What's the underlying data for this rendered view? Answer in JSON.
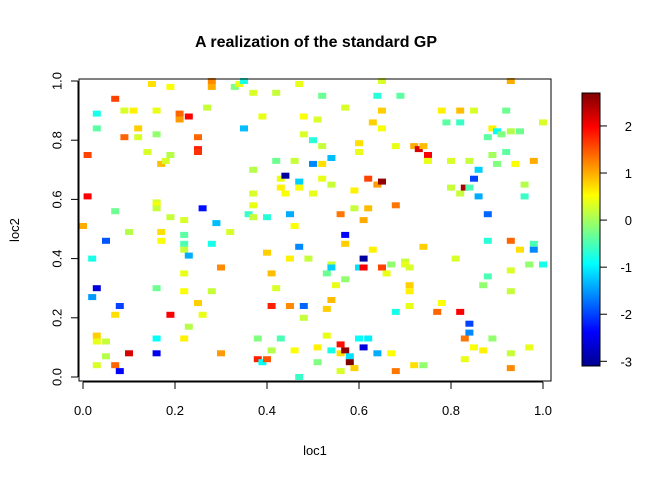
{
  "chart_data": {
    "type": "heatmap",
    "title": "A realization of the standard GP",
    "xlabel": "loc1",
    "ylabel": "loc2",
    "xlim": [
      0,
      1
    ],
    "ylim": [
      0,
      1
    ],
    "x_ticks": [
      "0.0",
      "0.2",
      "0.4",
      "0.6",
      "0.8",
      "1.0"
    ],
    "y_ticks": [
      "0.0",
      "0.2",
      "0.4",
      "0.6",
      "0.8",
      "1.0"
    ],
    "colorbar": {
      "range": [
        -3.1,
        2.7
      ],
      "ticks": [
        "-3",
        "-2",
        "-1",
        "0",
        "1",
        "2"
      ],
      "palette": [
        "#00008F",
        "#0000FF",
        "#0080FF",
        "#00FFFF",
        "#80FF80",
        "#FFFF00",
        "#FF8000",
        "#FF0000",
        "#800000"
      ]
    },
    "grid": false,
    "points": [
      {
        "x": 0.01,
        "y": 0.75,
        "z": 1.6
      },
      {
        "x": 0.01,
        "y": 0.61,
        "z": 2.0
      },
      {
        "x": 0.0,
        "y": 0.51,
        "z": 1.0
      },
      {
        "x": 0.02,
        "y": 0.4,
        "z": -0.8
      },
      {
        "x": 0.02,
        "y": 0.27,
        "z": -1.5
      },
      {
        "x": 0.03,
        "y": 0.3,
        "z": -2.6
      },
      {
        "x": 0.03,
        "y": 0.14,
        "z": 0.8
      },
      {
        "x": 0.03,
        "y": 0.12,
        "z": 0.4
      },
      {
        "x": 0.03,
        "y": 0.04,
        "z": 0.3
      },
      {
        "x": 0.03,
        "y": 0.89,
        "z": -0.8
      },
      {
        "x": 0.03,
        "y": 0.84,
        "z": -0.4
      },
      {
        "x": 0.05,
        "y": 0.46,
        "z": -1.9
      },
      {
        "x": 0.05,
        "y": 0.12,
        "z": 0.2
      },
      {
        "x": 0.05,
        "y": 0.07,
        "z": 0.1
      },
      {
        "x": 0.07,
        "y": 0.94,
        "z": 1.6
      },
      {
        "x": 0.07,
        "y": 0.56,
        "z": -0.3
      },
      {
        "x": 0.07,
        "y": 0.21,
        "z": 0.7
      },
      {
        "x": 0.07,
        "y": 0.04,
        "z": 1.4
      },
      {
        "x": 0.08,
        "y": 0.24,
        "z": -2.0
      },
      {
        "x": 0.08,
        "y": 0.02,
        "z": -2.4
      },
      {
        "x": 0.09,
        "y": 0.9,
        "z": 0.3
      },
      {
        "x": 0.09,
        "y": 0.81,
        "z": 1.4
      },
      {
        "x": 0.1,
        "y": 0.49,
        "z": 0.1
      },
      {
        "x": 0.1,
        "y": 0.08,
        "z": 2.2
      },
      {
        "x": 0.11,
        "y": 0.9,
        "z": 0.6
      },
      {
        "x": 0.12,
        "y": 0.84,
        "z": 0.8
      },
      {
        "x": 0.12,
        "y": 0.81,
        "z": 0.3
      },
      {
        "x": 0.14,
        "y": 0.76,
        "z": 0.3
      },
      {
        "x": 0.15,
        "y": 0.99,
        "z": 0.7
      },
      {
        "x": 0.16,
        "y": 0.9,
        "z": 0.4
      },
      {
        "x": 0.16,
        "y": 0.82,
        "z": -0.1
      },
      {
        "x": 0.16,
        "y": 0.59,
        "z": 0.3
      },
      {
        "x": 0.16,
        "y": 0.58,
        "z": 0.5
      },
      {
        "x": 0.16,
        "y": 0.57,
        "z": 0.2
      },
      {
        "x": 0.16,
        "y": 0.3,
        "z": -0.3
      },
      {
        "x": 0.16,
        "y": 0.13,
        "z": -0.9
      },
      {
        "x": 0.16,
        "y": 0.08,
        "z": -2.5
      },
      {
        "x": 0.17,
        "y": 0.72,
        "z": 0.9
      },
      {
        "x": 0.17,
        "y": 0.49,
        "z": 0.7
      },
      {
        "x": 0.17,
        "y": 0.46,
        "z": 0.5
      },
      {
        "x": 0.18,
        "y": 0.73,
        "z": 0.3
      },
      {
        "x": 0.19,
        "y": 0.98,
        "z": 0.5
      },
      {
        "x": 0.19,
        "y": 0.75,
        "z": 0.1
      },
      {
        "x": 0.19,
        "y": 0.54,
        "z": 0.2
      },
      {
        "x": 0.19,
        "y": 0.21,
        "z": 2.0
      },
      {
        "x": 0.21,
        "y": 0.89,
        "z": 1.4
      },
      {
        "x": 0.21,
        "y": 0.87,
        "z": 1.1
      },
      {
        "x": 0.22,
        "y": 0.53,
        "z": 0.3
      },
      {
        "x": 0.22,
        "y": 0.48,
        "z": -0.4
      },
      {
        "x": 0.22,
        "y": 0.45,
        "z": -0.5
      },
      {
        "x": 0.22,
        "y": 0.43,
        "z": 0.2
      },
      {
        "x": 0.22,
        "y": 0.35,
        "z": 0.4
      },
      {
        "x": 0.22,
        "y": 0.29,
        "z": 0.5
      },
      {
        "x": 0.22,
        "y": 0.13,
        "z": 0.6
      },
      {
        "x": 0.23,
        "y": 0.88,
        "z": 2.0
      },
      {
        "x": 0.23,
        "y": 0.17,
        "z": 0.1
      },
      {
        "x": 0.23,
        "y": 0.41,
        "z": -1.4
      },
      {
        "x": 0.25,
        "y": 0.81,
        "z": 1.4
      },
      {
        "x": 0.25,
        "y": 0.77,
        "z": 1.8
      },
      {
        "x": 0.25,
        "y": 0.76,
        "z": 1.7
      },
      {
        "x": 0.25,
        "y": 0.25,
        "z": 0.8
      },
      {
        "x": 0.26,
        "y": 0.57,
        "z": -2.3
      },
      {
        "x": 0.26,
        "y": 0.21,
        "z": 0.4
      },
      {
        "x": 0.27,
        "y": 0.91,
        "z": 0.2
      },
      {
        "x": 0.28,
        "y": 1.0,
        "z": 1.2
      },
      {
        "x": 0.28,
        "y": 0.98,
        "z": 1.0
      },
      {
        "x": 0.28,
        "y": 0.45,
        "z": -0.8
      },
      {
        "x": 0.28,
        "y": 0.29,
        "z": 0.2
      },
      {
        "x": 0.29,
        "y": 0.52,
        "z": -1.3
      },
      {
        "x": 0.3,
        "y": 0.37,
        "z": 1.2
      },
      {
        "x": 0.3,
        "y": 0.08,
        "z": 1.1
      },
      {
        "x": 0.32,
        "y": 0.49,
        "z": 0.3
      },
      {
        "x": 0.33,
        "y": 0.98,
        "z": -0.2
      },
      {
        "x": 0.34,
        "y": 0.99,
        "z": 0.4
      },
      {
        "x": 0.35,
        "y": 1.0,
        "z": -0.8
      },
      {
        "x": 0.35,
        "y": 0.84,
        "z": -1.3
      },
      {
        "x": 0.36,
        "y": 0.55,
        "z": -0.6
      },
      {
        "x": 0.37,
        "y": 0.96,
        "z": 0.3
      },
      {
        "x": 0.37,
        "y": 0.7,
        "z": 0.1
      },
      {
        "x": 0.37,
        "y": 0.62,
        "z": 0.3
      },
      {
        "x": 0.37,
        "y": 0.58,
        "z": 0.4
      },
      {
        "x": 0.37,
        "y": 0.54,
        "z": 0.2
      },
      {
        "x": 0.38,
        "y": 0.13,
        "z": -0.2
      },
      {
        "x": 0.38,
        "y": 0.06,
        "z": 1.8
      },
      {
        "x": 0.39,
        "y": 0.05,
        "z": -0.9
      },
      {
        "x": 0.39,
        "y": 0.88,
        "z": 0.4
      },
      {
        "x": 0.4,
        "y": 0.54,
        "z": -0.7
      },
      {
        "x": 0.4,
        "y": 0.42,
        "z": 0.8
      },
      {
        "x": 0.4,
        "y": 0.06,
        "z": 1.5
      },
      {
        "x": 0.41,
        "y": 0.35,
        "z": 0.9
      },
      {
        "x": 0.41,
        "y": 0.24,
        "z": 1.8
      },
      {
        "x": 0.41,
        "y": 0.09,
        "z": 0.1
      },
      {
        "x": 0.42,
        "y": 0.96,
        "z": 0.2
      },
      {
        "x": 0.42,
        "y": 0.73,
        "z": -0.3
      },
      {
        "x": 0.42,
        "y": 0.3,
        "z": 0.3
      },
      {
        "x": 0.43,
        "y": 0.67,
        "z": 0.4
      },
      {
        "x": 0.43,
        "y": 0.64,
        "z": 0.6
      },
      {
        "x": 0.43,
        "y": 0.13,
        "z": -0.5
      },
      {
        "x": 0.44,
        "y": 0.68,
        "z": -3.0
      },
      {
        "x": 0.44,
        "y": 0.62,
        "z": 0.5
      },
      {
        "x": 0.45,
        "y": 0.55,
        "z": -1.4
      },
      {
        "x": 0.45,
        "y": 0.4,
        "z": 0.6
      },
      {
        "x": 0.45,
        "y": 0.24,
        "z": 1.2
      },
      {
        "x": 0.46,
        "y": 0.73,
        "z": 0.2
      },
      {
        "x": 0.46,
        "y": 0.51,
        "z": 0.5
      },
      {
        "x": 0.46,
        "y": 0.09,
        "z": 0.5
      },
      {
        "x": 0.47,
        "y": 0.99,
        "z": 0.4
      },
      {
        "x": 0.47,
        "y": 0.66,
        "z": -1.2
      },
      {
        "x": 0.47,
        "y": 0.64,
        "z": 0.5
      },
      {
        "x": 0.47,
        "y": 0.44,
        "z": -1.6
      },
      {
        "x": 0.47,
        "y": 0.0,
        "z": -0.6
      },
      {
        "x": 0.48,
        "y": 0.88,
        "z": 0.5
      },
      {
        "x": 0.48,
        "y": 0.82,
        "z": 0.3
      },
      {
        "x": 0.48,
        "y": 0.24,
        "z": -1.8
      },
      {
        "x": 0.48,
        "y": 0.2,
        "z": 0.2
      },
      {
        "x": 0.49,
        "y": 0.4,
        "z": 0.2
      },
      {
        "x": 0.5,
        "y": 0.8,
        "z": -0.7
      },
      {
        "x": 0.5,
        "y": 0.72,
        "z": -1.6
      },
      {
        "x": 0.5,
        "y": 0.62,
        "z": 0.4
      },
      {
        "x": 0.51,
        "y": 0.87,
        "z": 0.3
      },
      {
        "x": 0.51,
        "y": 0.1,
        "z": 0.6
      },
      {
        "x": 0.51,
        "y": 0.05,
        "z": -0.2
      },
      {
        "x": 0.52,
        "y": 0.95,
        "z": -0.3
      },
      {
        "x": 0.52,
        "y": 0.78,
        "z": 0.2
      },
      {
        "x": 0.52,
        "y": 0.72,
        "z": 0.7
      },
      {
        "x": 0.52,
        "y": 0.67,
        "z": 0.4
      },
      {
        "x": 0.53,
        "y": 0.35,
        "z": -0.3
      },
      {
        "x": 0.53,
        "y": 0.23,
        "z": 0.8
      },
      {
        "x": 0.53,
        "y": 0.14,
        "z": 0.4
      },
      {
        "x": 0.54,
        "y": 0.74,
        "z": -1.3
      },
      {
        "x": 0.54,
        "y": 0.65,
        "z": 0.2
      },
      {
        "x": 0.54,
        "y": 0.38,
        "z": 0.2
      },
      {
        "x": 0.54,
        "y": 0.37,
        "z": -1.2
      },
      {
        "x": 0.54,
        "y": 0.26,
        "z": 0.9
      },
      {
        "x": 0.54,
        "y": 0.09,
        "z": -0.8
      },
      {
        "x": 0.55,
        "y": 0.31,
        "z": 0.4
      },
      {
        "x": 0.56,
        "y": 0.55,
        "z": 1.3
      },
      {
        "x": 0.56,
        "y": 0.11,
        "z": 1.9
      },
      {
        "x": 0.56,
        "y": 0.08,
        "z": 0.7
      },
      {
        "x": 0.56,
        "y": 0.02,
        "z": 0.3
      },
      {
        "x": 0.57,
        "y": 0.91,
        "z": 0.3
      },
      {
        "x": 0.57,
        "y": 0.48,
        "z": -2.4
      },
      {
        "x": 0.57,
        "y": 0.45,
        "z": 0.8
      },
      {
        "x": 0.57,
        "y": 0.33,
        "z": -0.1
      },
      {
        "x": 0.57,
        "y": 0.09,
        "z": 2.6
      },
      {
        "x": 0.58,
        "y": 0.07,
        "z": -1.1
      },
      {
        "x": 0.58,
        "y": 0.05,
        "z": 2.7
      },
      {
        "x": 0.59,
        "y": 0.63,
        "z": 0.6
      },
      {
        "x": 0.59,
        "y": 0.57,
        "z": 0.2
      },
      {
        "x": 0.59,
        "y": 0.03,
        "z": 0.8
      },
      {
        "x": 0.6,
        "y": 0.79,
        "z": 0.7
      },
      {
        "x": 0.6,
        "y": 0.76,
        "z": 0.4
      },
      {
        "x": 0.6,
        "y": 0.37,
        "z": -1.1
      },
      {
        "x": 0.6,
        "y": 0.13,
        "z": -0.9
      },
      {
        "x": 0.61,
        "y": 0.53,
        "z": 1.0
      },
      {
        "x": 0.61,
        "y": 0.4,
        "z": -3.0
      },
      {
        "x": 0.61,
        "y": 0.37,
        "z": 2.0
      },
      {
        "x": 0.61,
        "y": 0.1,
        "z": -2.6
      },
      {
        "x": 0.62,
        "y": 0.67,
        "z": 1.6
      },
      {
        "x": 0.62,
        "y": 0.57,
        "z": 0.9
      },
      {
        "x": 0.62,
        "y": 0.13,
        "z": -1.0
      },
      {
        "x": 0.63,
        "y": 0.86,
        "z": 0.8
      },
      {
        "x": 0.63,
        "y": 0.43,
        "z": 0.6
      },
      {
        "x": 0.64,
        "y": 0.95,
        "z": -0.7
      },
      {
        "x": 0.64,
        "y": 0.65,
        "z": 1.1
      },
      {
        "x": 0.64,
        "y": 0.08,
        "z": -1.4
      },
      {
        "x": 0.65,
        "y": 1.0,
        "z": 0.3
      },
      {
        "x": 0.65,
        "y": 0.9,
        "z": 0.8
      },
      {
        "x": 0.65,
        "y": 0.84,
        "z": 0.5
      },
      {
        "x": 0.65,
        "y": 0.66,
        "z": 2.6
      },
      {
        "x": 0.65,
        "y": 0.37,
        "z": 1.6
      },
      {
        "x": 0.66,
        "y": 0.35,
        "z": 0.4
      },
      {
        "x": 0.67,
        "y": 0.38,
        "z": -0.1
      },
      {
        "x": 0.67,
        "y": 0.08,
        "z": 0.5
      },
      {
        "x": 0.68,
        "y": 0.78,
        "z": 0.4
      },
      {
        "x": 0.68,
        "y": 0.58,
        "z": 1.3
      },
      {
        "x": 0.68,
        "y": 0.22,
        "z": -0.8
      },
      {
        "x": 0.68,
        "y": 0.02,
        "z": 1.3
      },
      {
        "x": 0.69,
        "y": 0.95,
        "z": -0.4
      },
      {
        "x": 0.7,
        "y": 0.39,
        "z": 0.2
      },
      {
        "x": 0.7,
        "y": 0.38,
        "z": 0.4
      },
      {
        "x": 0.71,
        "y": 0.37,
        "z": 0.3
      },
      {
        "x": 0.71,
        "y": 0.31,
        "z": 0.8
      },
      {
        "x": 0.71,
        "y": 0.29,
        "z": 0.6
      },
      {
        "x": 0.71,
        "y": 0.24,
        "z": 0.4
      },
      {
        "x": 0.72,
        "y": 0.78,
        "z": 1.0
      },
      {
        "x": 0.72,
        "y": 0.04,
        "z": 0.7
      },
      {
        "x": 0.73,
        "y": 0.77,
        "z": 2.2
      },
      {
        "x": 0.74,
        "y": 0.78,
        "z": 0.9
      },
      {
        "x": 0.74,
        "y": 0.44,
        "z": 0.8
      },
      {
        "x": 0.74,
        "y": 0.04,
        "z": -0.1
      },
      {
        "x": 0.75,
        "y": 0.75,
        "z": 2.0
      },
      {
        "x": 0.75,
        "y": 0.73,
        "z": 0.4
      },
      {
        "x": 0.77,
        "y": 0.22,
        "z": 1.4
      },
      {
        "x": 0.78,
        "y": 0.9,
        "z": 0.6
      },
      {
        "x": 0.78,
        "y": 0.25,
        "z": 0.5
      },
      {
        "x": 0.79,
        "y": 0.86,
        "z": -0.4
      },
      {
        "x": 0.8,
        "y": 0.73,
        "z": 0.3
      },
      {
        "x": 0.8,
        "y": 0.64,
        "z": 0.2
      },
      {
        "x": 0.81,
        "y": 0.4,
        "z": 0.3
      },
      {
        "x": 0.82,
        "y": 0.9,
        "z": 0.9
      },
      {
        "x": 0.82,
        "y": 0.86,
        "z": -0.6
      },
      {
        "x": 0.82,
        "y": 0.62,
        "z": 0.2
      },
      {
        "x": 0.82,
        "y": 0.22,
        "z": 2.0
      },
      {
        "x": 0.83,
        "y": 0.64,
        "z": 2.5
      },
      {
        "x": 0.83,
        "y": 0.13,
        "z": 1.3
      },
      {
        "x": 0.83,
        "y": 0.06,
        "z": 0.4
      },
      {
        "x": 0.84,
        "y": 0.73,
        "z": 0.2
      },
      {
        "x": 0.84,
        "y": 0.64,
        "z": -0.5
      },
      {
        "x": 0.84,
        "y": 0.18,
        "z": -2.0
      },
      {
        "x": 0.84,
        "y": 0.15,
        "z": -1.6
      },
      {
        "x": 0.85,
        "y": 0.9,
        "z": 0.3
      },
      {
        "x": 0.85,
        "y": 0.67,
        "z": -2.0
      },
      {
        "x": 0.85,
        "y": 0.1,
        "z": 0.5
      },
      {
        "x": 0.86,
        "y": 0.7,
        "z": -1.2
      },
      {
        "x": 0.86,
        "y": 0.61,
        "z": -1.4
      },
      {
        "x": 0.87,
        "y": 0.31,
        "z": -0.1
      },
      {
        "x": 0.87,
        "y": 0.09,
        "z": 0.6
      },
      {
        "x": 0.88,
        "y": 0.81,
        "z": -0.4
      },
      {
        "x": 0.88,
        "y": 0.55,
        "z": -1.8
      },
      {
        "x": 0.88,
        "y": 0.46,
        "z": -0.7
      },
      {
        "x": 0.88,
        "y": 0.34,
        "z": -0.5
      },
      {
        "x": 0.89,
        "y": 0.84,
        "z": 0.6
      },
      {
        "x": 0.89,
        "y": 0.75,
        "z": 0.0
      },
      {
        "x": 0.89,
        "y": 0.13,
        "z": -0.1
      },
      {
        "x": 0.9,
        "y": 0.83,
        "z": -0.9
      },
      {
        "x": 0.9,
        "y": 0.72,
        "z": -0.2
      },
      {
        "x": 0.91,
        "y": 0.82,
        "z": -0.2
      },
      {
        "x": 0.92,
        "y": 0.9,
        "z": -0.3
      },
      {
        "x": 0.92,
        "y": 0.76,
        "z": -0.4
      },
      {
        "x": 0.93,
        "y": 0.83,
        "z": 0.1
      },
      {
        "x": 0.93,
        "y": 1.0,
        "z": 1.0
      },
      {
        "x": 0.93,
        "y": 0.46,
        "z": 1.4
      },
      {
        "x": 0.93,
        "y": 0.36,
        "z": 0.3
      },
      {
        "x": 0.93,
        "y": 0.29,
        "z": 0.2
      },
      {
        "x": 0.93,
        "y": 0.08,
        "z": 0.2
      },
      {
        "x": 0.93,
        "y": 0.03,
        "z": 1.2
      },
      {
        "x": 0.94,
        "y": 0.72,
        "z": 0.5
      },
      {
        "x": 0.95,
        "y": 0.83,
        "z": -0.3
      },
      {
        "x": 0.95,
        "y": 0.43,
        "z": 0.7
      },
      {
        "x": 0.96,
        "y": 0.65,
        "z": 0.1
      },
      {
        "x": 0.96,
        "y": 0.61,
        "z": -0.6
      },
      {
        "x": 0.97,
        "y": 0.38,
        "z": -0.1
      },
      {
        "x": 0.97,
        "y": 0.1,
        "z": 0.4
      },
      {
        "x": 0.98,
        "y": 0.73,
        "z": 1.0
      },
      {
        "x": 0.98,
        "y": 0.45,
        "z": -0.5
      },
      {
        "x": 0.98,
        "y": 0.43,
        "z": -1.6
      },
      {
        "x": 1.0,
        "y": 0.86,
        "z": 0.3
      },
      {
        "x": 1.0,
        "y": 0.38,
        "z": -0.8
      }
    ]
  }
}
